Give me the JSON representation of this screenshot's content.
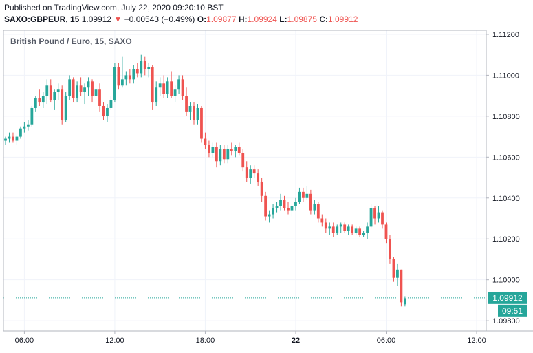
{
  "published": "Published on TradingView.com, July 22, 2020 09:20:10 BST",
  "quote": {
    "symbol": "SAXO:GBPEUR, 15",
    "last": "1.09912",
    "arrow": "▼",
    "change": "−0.00543 (−0.49%)",
    "o_label": "O:",
    "o": "1.09877",
    "h_label": "H:",
    "h": "1.09924",
    "l_label": "L:",
    "l": "1.09875",
    "c_label": "C:",
    "c": "1.09912"
  },
  "colors": {
    "up": "#26a69a",
    "down": "#ef5350",
    "grid": "#f0f3fa",
    "axis": "#131722",
    "price_line": "#26a69a"
  },
  "chart_data": {
    "type": "candlestick",
    "title": "British Pound / Euro, 15, SAXO",
    "ylim": [
      1.0975,
      1.1122
    ],
    "y_ticks": [
      "1.11200",
      "1.11000",
      "1.10800",
      "1.10600",
      "1.10400",
      "1.10200",
      "1.10000",
      "1.09800"
    ],
    "y_tick_values": [
      1.112,
      1.11,
      1.108,
      1.106,
      1.104,
      1.102,
      1.1,
      1.098
    ],
    "x_ticks": [
      "06:00",
      "12:00",
      "18:00",
      "22",
      "06:00",
      "12:00"
    ],
    "x_tick_bars": [
      5,
      29,
      53,
      77,
      101,
      125
    ],
    "last_price_label": "1.09912",
    "last_price": 1.09912,
    "countdown_label": "09:51",
    "candles": [
      [
        1.1068,
        1.107,
        1.1066,
        1.1069
      ],
      [
        1.1069,
        1.1072,
        1.1067,
        1.107
      ],
      [
        1.107,
        1.1072,
        1.1067,
        1.1068
      ],
      [
        1.1068,
        1.1071,
        1.1066,
        1.107
      ],
      [
        1.107,
        1.1075,
        1.1069,
        1.1074
      ],
      [
        1.1074,
        1.1077,
        1.1072,
        1.1075
      ],
      [
        1.1075,
        1.1078,
        1.1073,
        1.1076
      ],
      [
        1.1076,
        1.1085,
        1.1075,
        1.1084
      ],
      [
        1.1084,
        1.109,
        1.1082,
        1.1089
      ],
      [
        1.1089,
        1.1093,
        1.1085,
        1.1087
      ],
      [
        1.1087,
        1.1092,
        1.1084,
        1.109
      ],
      [
        1.109,
        1.1098,
        1.1086,
        1.1095
      ],
      [
        1.1095,
        1.1098,
        1.1087,
        1.1088
      ],
      [
        1.1088,
        1.1093,
        1.1083,
        1.1092
      ],
      [
        1.1092,
        1.1096,
        1.1088,
        1.1093
      ],
      [
        1.1093,
        1.1095,
        1.1076,
        1.1078
      ],
      [
        1.1078,
        1.1092,
        1.1077,
        1.109
      ],
      [
        1.109,
        1.11,
        1.1088,
        1.1098
      ],
      [
        1.1098,
        1.1099,
        1.1087,
        1.1089
      ],
      [
        1.1089,
        1.1097,
        1.1087,
        1.1095
      ],
      [
        1.1095,
        1.1099,
        1.109,
        1.1092
      ],
      [
        1.1092,
        1.1096,
        1.1086,
        1.1094
      ],
      [
        1.1094,
        1.1099,
        1.109,
        1.1097
      ],
      [
        1.1097,
        1.1098,
        1.1087,
        1.109
      ],
      [
        1.109,
        1.1095,
        1.1088,
        1.1093
      ],
      [
        1.1093,
        1.1096,
        1.1082,
        1.1085
      ],
      [
        1.1085,
        1.1087,
        1.1078,
        1.108
      ],
      [
        1.108,
        1.1086,
        1.1077,
        1.1084
      ],
      [
        1.1084,
        1.109,
        1.1083,
        1.1088
      ],
      [
        1.1088,
        1.1106,
        1.1087,
        1.1104
      ],
      [
        1.1104,
        1.1106,
        1.1093,
        1.1095
      ],
      [
        1.1095,
        1.1109,
        1.1094,
        1.1098
      ],
      [
        1.1098,
        1.1102,
        1.1095,
        1.11
      ],
      [
        1.11,
        1.1103,
        1.1096,
        1.1098
      ],
      [
        1.1098,
        1.1105,
        1.1096,
        1.1103
      ],
      [
        1.1103,
        1.1106,
        1.1099,
        1.1101
      ],
      [
        1.1101,
        1.111,
        1.1099,
        1.1107
      ],
      [
        1.1107,
        1.1109,
        1.11,
        1.1103
      ],
      [
        1.1103,
        1.1106,
        1.1099,
        1.1104
      ],
      [
        1.1104,
        1.1105,
        1.1083,
        1.1087
      ],
      [
        1.1087,
        1.1097,
        1.1085,
        1.1094
      ],
      [
        1.1094,
        1.1099,
        1.109,
        1.1096
      ],
      [
        1.1096,
        1.11,
        1.1089,
        1.1091
      ],
      [
        1.1091,
        1.1099,
        1.1089,
        1.1097
      ],
      [
        1.1097,
        1.1102,
        1.1089,
        1.109
      ],
      [
        1.109,
        1.1095,
        1.1087,
        1.1093
      ],
      [
        1.1093,
        1.11,
        1.1091,
        1.1098
      ],
      [
        1.1098,
        1.11,
        1.1088,
        1.109
      ],
      [
        1.109,
        1.1094,
        1.108,
        1.1082
      ],
      [
        1.1082,
        1.1087,
        1.1078,
        1.1085
      ],
      [
        1.1085,
        1.1087,
        1.1076,
        1.1078
      ],
      [
        1.1078,
        1.1086,
        1.1076,
        1.1084
      ],
      [
        1.1084,
        1.1085,
        1.1067,
        1.1069
      ],
      [
        1.1069,
        1.1072,
        1.1064,
        1.1066
      ],
      [
        1.1066,
        1.1068,
        1.106,
        1.1062
      ],
      [
        1.1062,
        1.1067,
        1.106,
        1.1065
      ],
      [
        1.1065,
        1.1067,
        1.1055,
        1.1058
      ],
      [
        1.1058,
        1.1066,
        1.1056,
        1.1064
      ],
      [
        1.1064,
        1.1066,
        1.1057,
        1.1059
      ],
      [
        1.1059,
        1.1066,
        1.1057,
        1.1064
      ],
      [
        1.1064,
        1.1067,
        1.1061,
        1.1063
      ],
      [
        1.1063,
        1.1066,
        1.106,
        1.1065
      ],
      [
        1.1065,
        1.1067,
        1.1061,
        1.1062
      ],
      [
        1.1062,
        1.1064,
        1.1053,
        1.1055
      ],
      [
        1.1055,
        1.1058,
        1.1048,
        1.105
      ],
      [
        1.105,
        1.1056,
        1.1047,
        1.1054
      ],
      [
        1.1054,
        1.1056,
        1.105,
        1.1052
      ],
      [
        1.1052,
        1.1054,
        1.1046,
        1.1048
      ],
      [
        1.1048,
        1.105,
        1.1038,
        1.1041
      ],
      [
        1.1041,
        1.1043,
        1.1029,
        1.1031
      ],
      [
        1.1031,
        1.1034,
        1.1028,
        1.1032
      ],
      [
        1.1032,
        1.1037,
        1.103,
        1.1035
      ],
      [
        1.1035,
        1.1038,
        1.1033,
        1.1036
      ],
      [
        1.1036,
        1.1042,
        1.1034,
        1.1039
      ],
      [
        1.1039,
        1.1041,
        1.1034,
        1.1035
      ],
      [
        1.1035,
        1.1038,
        1.1032,
        1.1034
      ],
      [
        1.1034,
        1.1037,
        1.1031,
        1.1036
      ],
      [
        1.1036,
        1.104,
        1.1034,
        1.1038
      ],
      [
        1.1038,
        1.1045,
        1.1037,
        1.1043
      ],
      [
        1.1043,
        1.1045,
        1.1038,
        1.104
      ],
      [
        1.104,
        1.1046,
        1.1039,
        1.1042
      ],
      [
        1.1042,
        1.1044,
        1.1032,
        1.1034
      ],
      [
        1.1034,
        1.1039,
        1.1032,
        1.1037
      ],
      [
        1.1037,
        1.1038,
        1.1028,
        1.103
      ],
      [
        1.103,
        1.1032,
        1.1026,
        1.1028
      ],
      [
        1.1028,
        1.103,
        1.1023,
        1.1025
      ],
      [
        1.1025,
        1.1028,
        1.1022,
        1.1026
      ],
      [
        1.1026,
        1.1028,
        1.1021,
        1.1023
      ],
      [
        1.1023,
        1.1027,
        1.1022,
        1.1026
      ],
      [
        1.1026,
        1.1028,
        1.1023,
        1.1027
      ],
      [
        1.1027,
        1.1028,
        1.1023,
        1.1024
      ],
      [
        1.1024,
        1.1027,
        1.1022,
        1.1026
      ],
      [
        1.1026,
        1.1027,
        1.1022,
        1.1023
      ],
      [
        1.1023,
        1.1026,
        1.1022,
        1.1025
      ],
      [
        1.1025,
        1.1026,
        1.1021,
        1.1022
      ],
      [
        1.1022,
        1.1024,
        1.1021,
        1.1023
      ],
      [
        1.1023,
        1.1028,
        1.102,
        1.1026
      ],
      [
        1.1026,
        1.1037,
        1.1025,
        1.1035
      ],
      [
        1.1035,
        1.1036,
        1.1027,
        1.103
      ],
      [
        1.103,
        1.1036,
        1.1028,
        1.1033
      ],
      [
        1.1033,
        1.1034,
        1.1025,
        1.1027
      ],
      [
        1.1027,
        1.1028,
        1.1018,
        1.102
      ],
      [
        1.102,
        1.1022,
        1.1008,
        1.101
      ],
      [
        1.101,
        1.1011,
        1.0999,
        1.1001
      ],
      [
        1.1001,
        1.1008,
        1.0997,
        1.1005
      ],
      [
        1.1005,
        1.1005,
        1.0987,
        1.0989
      ],
      [
        1.0988,
        1.0992,
        1.0987,
        1.0991
      ]
    ]
  }
}
